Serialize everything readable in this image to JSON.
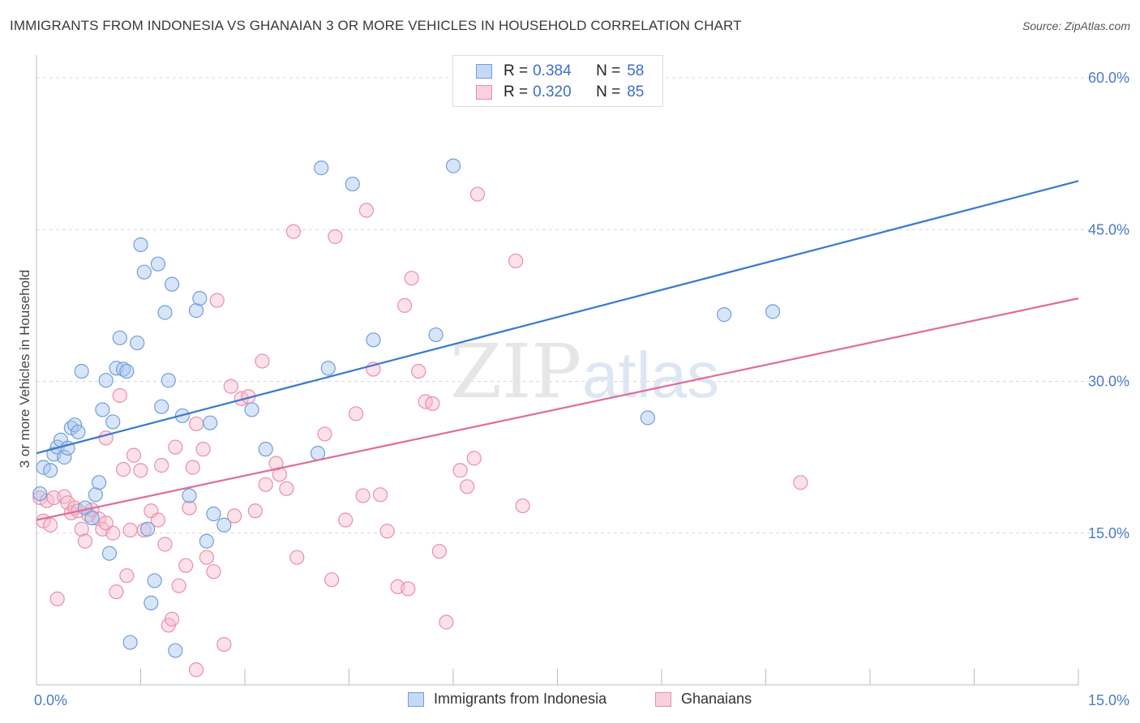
{
  "title": "IMMIGRANTS FROM INDONESIA VS GHANAIAN 3 OR MORE VEHICLES IN HOUSEHOLD CORRELATION CHART",
  "source": "Source: ZipAtlas.com",
  "watermark": {
    "zip": "ZIP",
    "atlas": "atlas"
  },
  "legend": {
    "rows": [
      {
        "r_label": "R =",
        "r_value": "0.384",
        "n_label": "N =",
        "n_value": "58"
      },
      {
        "r_label": "R =",
        "r_value": "0.320",
        "n_label": "N =",
        "n_value": "85"
      }
    ]
  },
  "colors": {
    "blue_fill": "#a9c6ef",
    "blue_stroke": "#6f9fdc",
    "blue_line": "#3a78d0",
    "pink_fill": "#f6bccd",
    "pink_stroke": "#ea8fac",
    "pink_line": "#e06c97",
    "grid": "#d9d9d9",
    "tick_text": "#4a7cc7"
  },
  "chart_data": {
    "type": "scatter",
    "title": "IMMIGRANTS FROM INDONESIA VS GHANAIAN 3 OR MORE VEHICLES IN HOUSEHOLD CORRELATION CHART",
    "xlabel": "",
    "ylabel": "3 or more Vehicles in Household",
    "xlim": [
      0,
      15
    ],
    "ylim": [
      0,
      60
    ],
    "x_tick_labels": [
      {
        "value": 0,
        "label": "0.0%"
      },
      {
        "value": 15,
        "label": "15.0%"
      }
    ],
    "y_tick_labels": [
      {
        "value": 15,
        "label": "15.0%"
      },
      {
        "value": 30,
        "label": "30.0%"
      },
      {
        "value": 45,
        "label": "45.0%"
      },
      {
        "value": 60,
        "label": "60.0%"
      }
    ],
    "series": [
      {
        "name": "Immigrants from Indonesia",
        "color": "blue",
        "trend": {
          "x0": 0,
          "y0": 22.9,
          "x1": 15,
          "y1": 49.8
        },
        "points": [
          [
            0.05,
            18.9
          ],
          [
            0.1,
            21.5
          ],
          [
            0.2,
            21.2
          ],
          [
            0.25,
            22.8
          ],
          [
            0.3,
            23.5
          ],
          [
            0.35,
            24.2
          ],
          [
            0.4,
            22.5
          ],
          [
            0.45,
            23.4
          ],
          [
            0.5,
            25.4
          ],
          [
            0.55,
            25.7
          ],
          [
            0.6,
            25.0
          ],
          [
            0.65,
            31.0
          ],
          [
            0.7,
            17.5
          ],
          [
            0.8,
            16.5
          ],
          [
            0.85,
            18.8
          ],
          [
            0.9,
            20.0
          ],
          [
            0.95,
            27.2
          ],
          [
            1.0,
            30.1
          ],
          [
            1.05,
            13.0
          ],
          [
            1.1,
            26.0
          ],
          [
            1.15,
            31.3
          ],
          [
            1.2,
            34.3
          ],
          [
            1.25,
            31.2
          ],
          [
            1.3,
            31.0
          ],
          [
            1.35,
            4.2
          ],
          [
            1.45,
            33.8
          ],
          [
            1.5,
            43.5
          ],
          [
            1.55,
            40.8
          ],
          [
            1.6,
            15.4
          ],
          [
            1.65,
            8.1
          ],
          [
            1.7,
            10.3
          ],
          [
            1.75,
            41.6
          ],
          [
            1.8,
            27.5
          ],
          [
            1.85,
            36.8
          ],
          [
            1.9,
            30.1
          ],
          [
            1.95,
            39.6
          ],
          [
            2.0,
            3.4
          ],
          [
            2.1,
            26.6
          ],
          [
            2.2,
            18.7
          ],
          [
            2.3,
            37.0
          ],
          [
            2.35,
            38.2
          ],
          [
            2.45,
            14.2
          ],
          [
            2.5,
            25.9
          ],
          [
            2.55,
            16.9
          ],
          [
            2.7,
            15.8
          ],
          [
            3.1,
            27.2
          ],
          [
            3.3,
            23.3
          ],
          [
            4.1,
            51.1
          ],
          [
            4.05,
            22.9
          ],
          [
            4.2,
            31.3
          ],
          [
            4.55,
            49.5
          ],
          [
            4.85,
            34.1
          ],
          [
            5.75,
            34.6
          ],
          [
            6.0,
            51.3
          ],
          [
            8.8,
            26.4
          ],
          [
            9.9,
            36.6
          ],
          [
            10.6,
            36.9
          ]
        ]
      },
      {
        "name": "Ghanaians",
        "color": "pink",
        "trend": {
          "x0": 0,
          "y0": 16.3,
          "x1": 15,
          "y1": 38.2
        },
        "points": [
          [
            0.05,
            18.5
          ],
          [
            0.1,
            16.2
          ],
          [
            0.15,
            18.2
          ],
          [
            0.25,
            18.5
          ],
          [
            0.3,
            8.5
          ],
          [
            0.4,
            18.6
          ],
          [
            0.45,
            18.0
          ],
          [
            0.5,
            17.0
          ],
          [
            0.55,
            17.5
          ],
          [
            0.6,
            17.2
          ],
          [
            0.65,
            15.4
          ],
          [
            0.7,
            14.2
          ],
          [
            0.75,
            16.8
          ],
          [
            0.8,
            17.3
          ],
          [
            0.9,
            16.4
          ],
          [
            0.95,
            15.4
          ],
          [
            1.0,
            24.4
          ],
          [
            1.1,
            15.0
          ],
          [
            1.15,
            9.2
          ],
          [
            1.2,
            28.6
          ],
          [
            1.25,
            21.3
          ],
          [
            1.3,
            10.8
          ],
          [
            1.35,
            15.3
          ],
          [
            1.4,
            22.7
          ],
          [
            1.5,
            21.2
          ],
          [
            1.55,
            15.3
          ],
          [
            1.65,
            17.2
          ],
          [
            1.75,
            16.3
          ],
          [
            1.8,
            21.7
          ],
          [
            1.85,
            13.9
          ],
          [
            1.9,
            5.9
          ],
          [
            1.95,
            6.5
          ],
          [
            2.0,
            23.5
          ],
          [
            2.05,
            9.8
          ],
          [
            2.15,
            11.8
          ],
          [
            2.2,
            17.5
          ],
          [
            2.25,
            21.5
          ],
          [
            2.3,
            25.8
          ],
          [
            2.4,
            23.3
          ],
          [
            2.45,
            12.6
          ],
          [
            2.55,
            11.2
          ],
          [
            2.6,
            38.0
          ],
          [
            2.7,
            4.0
          ],
          [
            2.8,
            29.5
          ],
          [
            2.85,
            16.7
          ],
          [
            2.95,
            28.3
          ],
          [
            3.05,
            28.5
          ],
          [
            3.15,
            17.2
          ],
          [
            3.25,
            32.0
          ],
          [
            3.3,
            19.8
          ],
          [
            3.45,
            21.9
          ],
          [
            3.5,
            20.8
          ],
          [
            3.6,
            19.4
          ],
          [
            3.7,
            44.8
          ],
          [
            3.75,
            12.6
          ],
          [
            4.15,
            24.8
          ],
          [
            4.25,
            10.4
          ],
          [
            4.3,
            44.3
          ],
          [
            4.45,
            16.3
          ],
          [
            4.6,
            26.8
          ],
          [
            4.7,
            18.7
          ],
          [
            4.75,
            46.9
          ],
          [
            4.85,
            31.2
          ],
          [
            4.95,
            18.8
          ],
          [
            5.05,
            15.2
          ],
          [
            5.2,
            9.7
          ],
          [
            5.3,
            37.5
          ],
          [
            5.35,
            9.5
          ],
          [
            5.4,
            40.2
          ],
          [
            5.5,
            31.0
          ],
          [
            5.6,
            28.0
          ],
          [
            5.7,
            27.8
          ],
          [
            5.8,
            13.2
          ],
          [
            5.9,
            6.2
          ],
          [
            6.1,
            21.2
          ],
          [
            6.2,
            19.6
          ],
          [
            6.3,
            22.4
          ],
          [
            6.35,
            48.5
          ],
          [
            6.9,
            41.9
          ],
          [
            7.0,
            17.7
          ],
          [
            11.0,
            20.0
          ],
          [
            0.2,
            15.8
          ],
          [
            1.0,
            16.0
          ],
          [
            2.3,
            1.5
          ]
        ]
      }
    ]
  },
  "bottom_legend": {
    "series1": "Immigrants from Indonesia",
    "series2": "Ghanaians"
  }
}
